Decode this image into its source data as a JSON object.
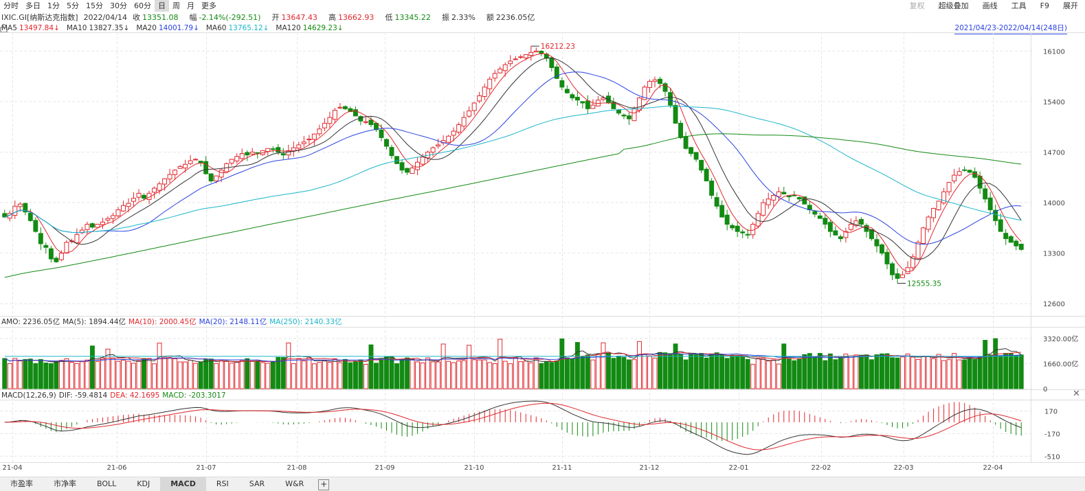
{
  "toolbar": {
    "timeframes": [
      "分时",
      "多日",
      "1分",
      "5分",
      "15分",
      "30分",
      "60分",
      "日",
      "周",
      "月",
      "更多"
    ],
    "active": "日",
    "right_buttons": [
      "复权",
      "超级叠加",
      "画线",
      "工具",
      "F9",
      "展开"
    ]
  },
  "quote": {
    "code": "IXIC.GI[纳斯达克指数]",
    "date": "2022/04/14",
    "close_label": "收",
    "close": "13351.08",
    "change_label": "幅",
    "change": "-2.14%(-292.51)",
    "open_label": "开",
    "open": "13647.43",
    "high_label": "高",
    "high": "13662.93",
    "low_label": "低",
    "low": "13345.22",
    "amp_label": "振",
    "amp": "2.33%",
    "amount_label": "额",
    "amount": "2236.05亿"
  },
  "ma_legend": [
    {
      "label": "MA5",
      "value": "13497.84↓",
      "color": "#e0262c"
    },
    {
      "label": "MA10",
      "value": "13827.35↓",
      "color": "#333333"
    },
    {
      "label": "MA20",
      "value": "14001.79↓",
      "color": "#2a43e0"
    },
    {
      "label": "MA60",
      "value": "13765.12↓",
      "color": "#19b5c8"
    },
    {
      "label": "MA120",
      "value": "14629.23↓",
      "color": "#138a13"
    }
  ],
  "range": "2021/04/23-2022/04/14(248日)",
  "amo_legend": [
    {
      "text": "AMO: 2236.05亿",
      "color": "#333333"
    },
    {
      "text": "MA(5): 1894.44亿",
      "color": "#333333"
    },
    {
      "text": "MA(10): 2000.45亿",
      "color": "#e0262c"
    },
    {
      "text": "MA(20): 2148.11亿",
      "color": "#2a43e0"
    },
    {
      "text": "MA(250): 2140.33亿",
      "color": "#19b5c8"
    }
  ],
  "macd_legend": [
    {
      "text": "MACD(12,26,9)",
      "color": "#333333"
    },
    {
      "text": "DIF: -59.4814",
      "color": "#333333"
    },
    {
      "text": "DEA: 42.1695",
      "color": "#e0262c"
    },
    {
      "text": "MACD: -203.3017",
      "color": "#138a13"
    }
  ],
  "bottom_tabs": [
    "市盈率",
    "市净率",
    "BOLL",
    "KDJ",
    "MACD",
    "RSI",
    "SAR",
    "W&R"
  ],
  "bottom_active": "MACD",
  "colors": {
    "up": "#e0262c",
    "down": "#138a13",
    "ma5": "#e0262c",
    "ma10": "#333333",
    "ma20": "#2a43e0",
    "ma60": "#19b5c8",
    "ma120": "#138a13"
  },
  "chart_data": {
    "type": "candlestick",
    "price_axis": {
      "ticks": [
        12600,
        13300,
        14000,
        14700,
        15400,
        16100
      ],
      "ylim": [
        12450,
        16350
      ]
    },
    "volume_axis": {
      "ticks": [
        "0",
        "1660.00亿",
        "3320.00亿"
      ],
      "ylim": [
        0,
        4000
      ]
    },
    "macd_axis": {
      "ticks": [
        "-510",
        "-170",
        "170"
      ],
      "ylim": [
        -590,
        330
      ]
    },
    "x_month_labels": [
      "21-04",
      "21-06",
      "21-07",
      "21-08",
      "21-09",
      "21-10",
      "21-11",
      "21-12",
      "22-01",
      "22-02",
      "22-03",
      "22-04"
    ],
    "high_annotation": "16212.23",
    "low_annotation": "12555.35",
    "close_path": [
      13800,
      13850,
      13950,
      13980,
      13870,
      13750,
      13600,
      13430,
      13380,
      13220,
      13180,
      13300,
      13450,
      13470,
      13560,
      13620,
      13700,
      13660,
      13700,
      13730,
      13780,
      13820,
      13900,
      13960,
      13990,
      14060,
      14130,
      14060,
      14130,
      14200,
      14260,
      14330,
      14390,
      14450,
      14500,
      14530,
      14580,
      14600,
      14550,
      14400,
      14300,
      14370,
      14450,
      14540,
      14600,
      14640,
      14680,
      14660,
      14700,
      14690,
      14720,
      14750,
      14740,
      14700,
      14660,
      14720,
      14760,
      14800,
      14840,
      14880,
      14950,
      15020,
      15100,
      15180,
      15280,
      15320,
      15300,
      15260,
      15200,
      15130,
      15120,
      15080,
      15010,
      14900,
      14780,
      14650,
      14540,
      14450,
      14420,
      14480,
      14560,
      14630,
      14700,
      14760,
      14800,
      14860,
      14920,
      14990,
      15080,
      15180,
      15270,
      15380,
      15480,
      15600,
      15710,
      15790,
      15850,
      15910,
      15960,
      15990,
      16020,
      16050,
      16080,
      16100,
      16070,
      16000,
      15870,
      15720,
      15600,
      15520,
      15450,
      15420,
      15380,
      15300,
      15350,
      15420,
      15450,
      15380,
      15300,
      15240,
      15200,
      15160,
      15300,
      15450,
      15600,
      15680,
      15700,
      15650,
      15540,
      15350,
      15100,
      14900,
      14750,
      14680,
      14600,
      14450,
      14300,
      14100,
      13950,
      13800,
      13700,
      13650,
      13600,
      13580,
      13550,
      13700,
      13850,
      14000,
      14050,
      14100,
      14150,
      14120,
      14080,
      14100,
      14050,
      13980,
      13900,
      13840,
      13780,
      13700,
      13600,
      13550,
      13500,
      13600,
      13700,
      13750,
      13700,
      13600,
      13500,
      13400,
      13300,
      13150,
      13000,
      12950,
      13000,
      13100,
      13250,
      13450,
      13650,
      13800,
      13920,
      14020,
      14150,
      14280,
      14380,
      14430,
      14450,
      14420,
      14350,
      14200,
      14050,
      13900,
      13750,
      13600,
      13500,
      13450,
      13400,
      13351
    ]
  }
}
